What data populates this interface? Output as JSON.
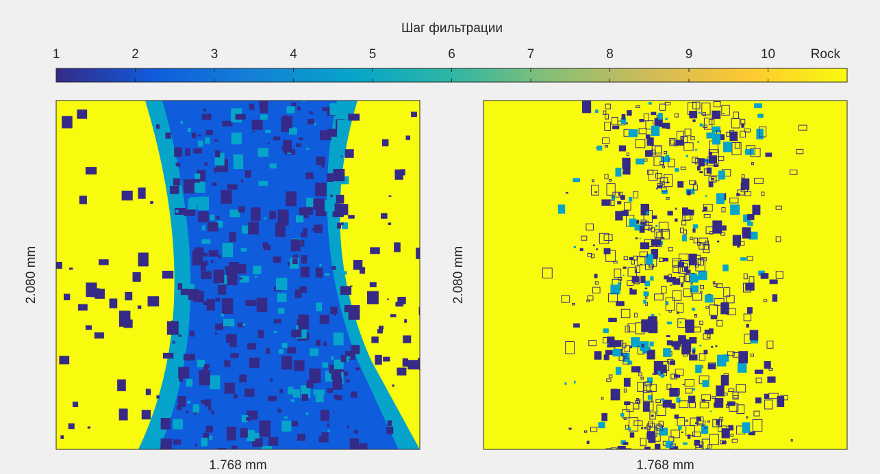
{
  "chart_data": {
    "type": "image",
    "title": "Шаг фильтрации",
    "colorbar": {
      "clim": [
        1,
        11
      ],
      "ticks": [
        1,
        2,
        3,
        4,
        5,
        6,
        7,
        8,
        9,
        10,
        {
          "value": 11,
          "label": "Rock"
        }
      ],
      "colormap": [
        "#352a87",
        "#0f5cdd",
        "#1481d6",
        "#06a4ca",
        "#2eb7a4",
        "#87bf77",
        "#d1bb59",
        "#fec832",
        "#f9fb0e"
      ]
    },
    "panels": [
      {
        "xlabel": "1.768 mm",
        "ylabel": "2.080 mm"
      },
      {
        "xlabel": "1.768 mm",
        "ylabel": "2.080 mm"
      }
    ]
  }
}
